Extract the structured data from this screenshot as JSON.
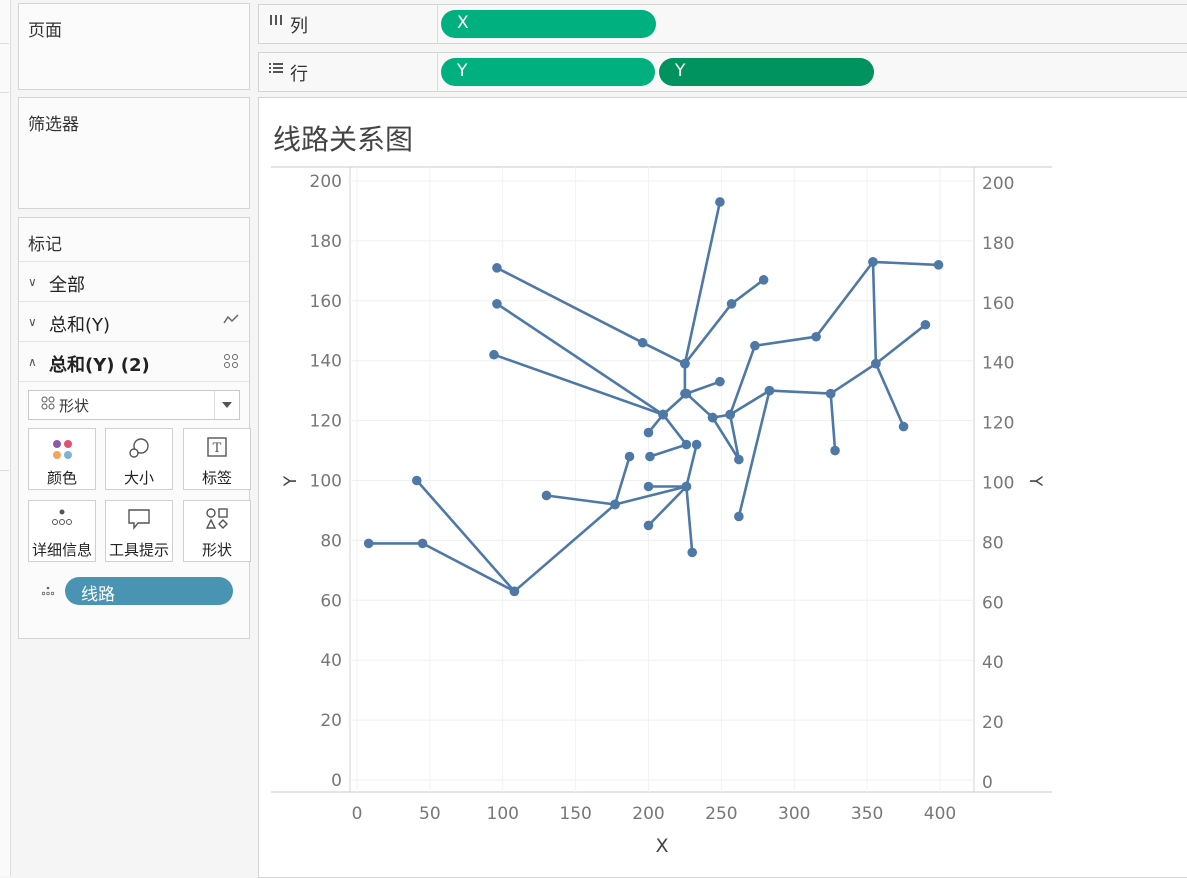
{
  "cards": {
    "pages": "页面",
    "filters": "筛选器",
    "marks": "标记"
  },
  "marks": {
    "rows": [
      {
        "label": "全部",
        "chevron": "∨"
      },
      {
        "label": "总和(Y)",
        "chevron": "∨"
      },
      {
        "label": "总和(Y) (2)",
        "chevron": "∧"
      }
    ],
    "mark_type": "形状",
    "buttons": [
      "颜色",
      "大小",
      "标签",
      "详细信息",
      "工具提示",
      "形状"
    ],
    "detail_pill": "线路"
  },
  "shelves": {
    "columns": {
      "label": "列",
      "pills": [
        "X"
      ]
    },
    "rows": {
      "label": "行",
      "pills": [
        "Y",
        "Y"
      ]
    }
  },
  "colors": {
    "pill_green": "#00b07f",
    "pill_green_dark": "#00935f",
    "detail_pill": "#4a94b3",
    "line": "#4e78a6"
  },
  "view": {
    "title": "线路关系图"
  },
  "chart_data": {
    "type": "line",
    "title": "线路关系图",
    "xlabel": "X",
    "ylabel": "Y",
    "ylabel_right": "Y",
    "xlim": [
      -5,
      405
    ],
    "ylim": [
      -4,
      204
    ],
    "x_ticks": [
      0,
      50,
      100,
      150,
      200,
      250,
      300,
      350,
      400
    ],
    "y_ticks": [
      0,
      20,
      40,
      60,
      80,
      100,
      120,
      140,
      160,
      180,
      200
    ],
    "grid": true,
    "segments": [
      [
        [
          8,
          79
        ],
        [
          45,
          79
        ],
        [
          108,
          63
        ],
        [
          177,
          92
        ],
        [
          187,
          108
        ]
      ],
      [
        [
          41,
          100
        ],
        [
          108,
          63
        ]
      ],
      [
        [
          130,
          95
        ],
        [
          177,
          92
        ]
      ],
      [
        [
          177,
          92
        ],
        [
          226,
          98
        ],
        [
          230,
          76
        ]
      ],
      [
        [
          200,
          85
        ],
        [
          226,
          98
        ]
      ],
      [
        [
          200,
          98
        ],
        [
          226,
          98
        ],
        [
          233,
          112
        ]
      ],
      [
        [
          200,
          116
        ],
        [
          210,
          122
        ],
        [
          226,
          129
        ],
        [
          244,
          121
        ]
      ],
      [
        [
          201,
          108
        ],
        [
          226,
          112
        ],
        [
          210,
          122
        ]
      ],
      [
        [
          94,
          142
        ],
        [
          210,
          122
        ]
      ],
      [
        [
          96,
          159
        ],
        [
          210,
          122
        ]
      ],
      [
        [
          96,
          171
        ],
        [
          196,
          146
        ],
        [
          225,
          139
        ],
        [
          225,
          129
        ]
      ],
      [
        [
          225,
          139
        ],
        [
          257,
          159
        ],
        [
          279,
          167
        ]
      ],
      [
        [
          225,
          139
        ],
        [
          249,
          193
        ]
      ],
      [
        [
          226,
          129
        ],
        [
          249,
          133
        ]
      ],
      [
        [
          244,
          121
        ],
        [
          256,
          122
        ],
        [
          273,
          145
        ],
        [
          315,
          148
        ],
        [
          354,
          173
        ],
        [
          399,
          172
        ]
      ],
      [
        [
          256,
          122
        ],
        [
          262,
          107
        ],
        [
          244,
          121
        ]
      ],
      [
        [
          256,
          122
        ],
        [
          283,
          130
        ],
        [
          325,
          129
        ],
        [
          328,
          110
        ]
      ],
      [
        [
          262,
          88
        ],
        [
          283,
          130
        ]
      ],
      [
        [
          325,
          129
        ],
        [
          356,
          139
        ],
        [
          390,
          152
        ]
      ],
      [
        [
          354,
          173
        ],
        [
          356,
          139
        ],
        [
          375,
          118
        ]
      ]
    ]
  }
}
